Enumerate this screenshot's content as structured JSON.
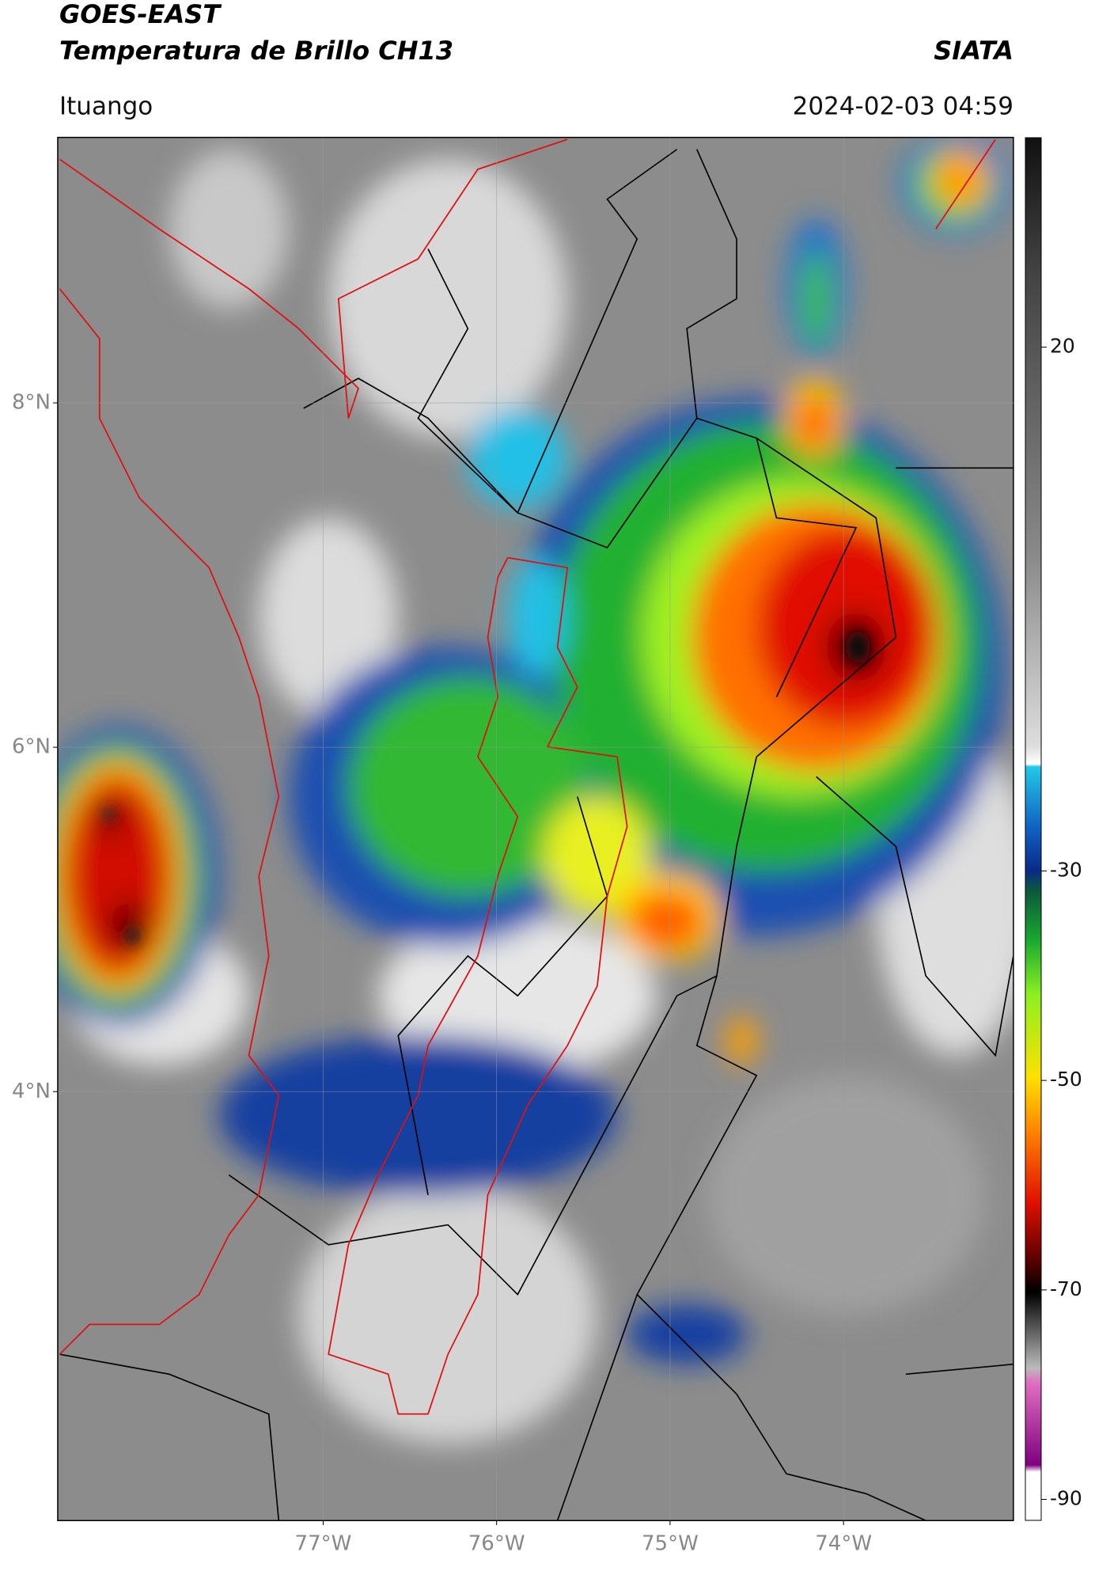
{
  "header": {
    "title": "GOES-EAST",
    "subtitle": "Temperatura de Brillo CH13",
    "agency": "SIATA",
    "location": "Ituango",
    "datetime": "2024-02-03 04:59"
  },
  "map": {
    "xlim": [
      -78.53,
      -73.02
    ],
    "ylim": [
      1.51,
      9.54
    ],
    "xticks": [
      {
        "value": -77,
        "label": "77°W"
      },
      {
        "value": -76,
        "label": "76°W"
      },
      {
        "value": -75,
        "label": "75°W"
      },
      {
        "value": -74,
        "label": "74°W"
      }
    ],
    "yticks": [
      {
        "value": 8,
        "label": "8°N"
      },
      {
        "value": 6,
        "label": "6°N"
      },
      {
        "value": 4,
        "label": "4°N"
      }
    ],
    "grid": true
  },
  "colorbar": {
    "lim": [
      -92,
      40
    ],
    "ticks": [
      20,
      -30,
      -50,
      -70,
      -90
    ]
  }
}
